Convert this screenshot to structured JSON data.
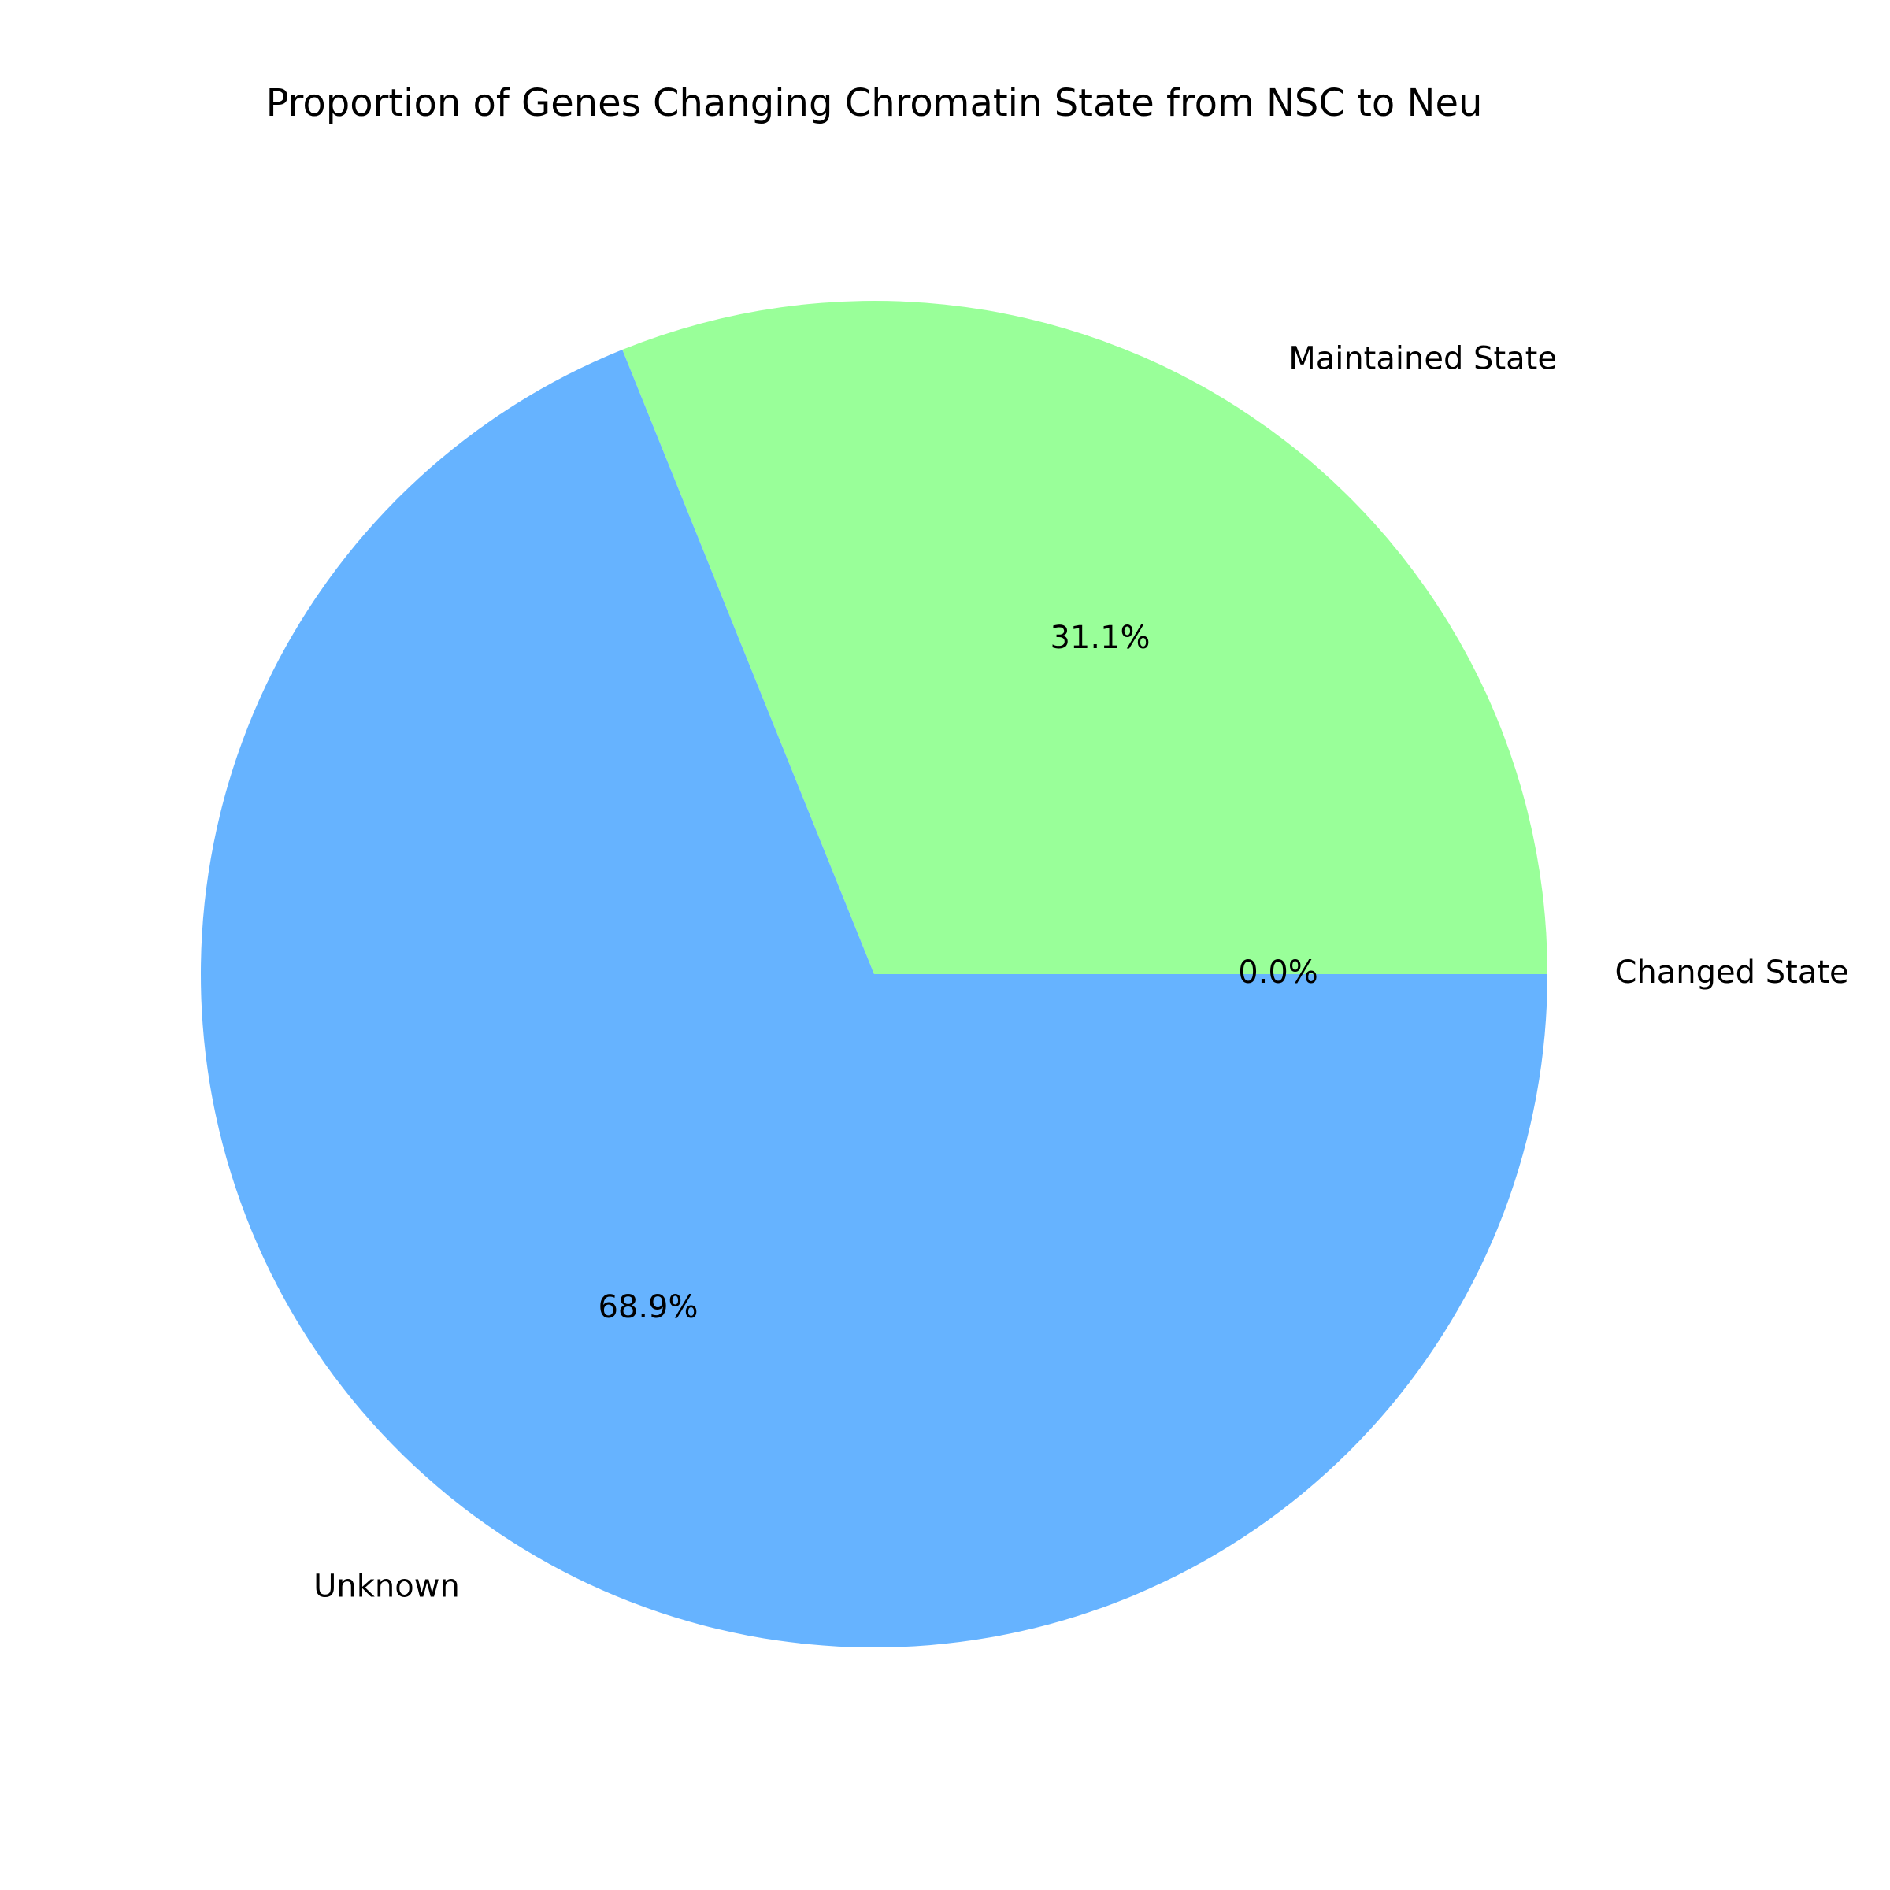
{
  "chart_data": {
    "type": "pie",
    "title": "Proportion of Genes Changing Chromatin State from NSC to Neu",
    "start_angle_deg": 0,
    "direction": "counterclockwise",
    "slices": [
      {
        "label": "Changed State",
        "value": 0.0,
        "pct_label": "0.0%",
        "color": "#ff9999"
      },
      {
        "label": "Maintained State",
        "value": 31.1,
        "pct_label": "31.1%",
        "color": "#99ff99"
      },
      {
        "label": "Unknown",
        "value": 68.9,
        "pct_label": "68.9%",
        "color": "#66b3ff"
      }
    ]
  }
}
